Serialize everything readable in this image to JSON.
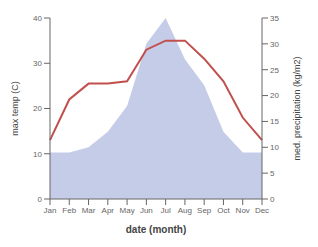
{
  "chart_data": {
    "type": "line",
    "xlabel": "date (month)",
    "ylabel": "max temp (C)",
    "y2label": "med. precipitation (kg/m2)",
    "categories": [
      "Jan",
      "Feb",
      "Mar",
      "Apr",
      "May",
      "Jun",
      "Jul",
      "Aug",
      "Sep",
      "Oct",
      "Nov",
      "Dec"
    ],
    "series": [
      {
        "type": "area",
        "axis": "y2",
        "color": "#c5cce8",
        "values": [
          9,
          9,
          10,
          13,
          18,
          30,
          35,
          27,
          22,
          13,
          9,
          9
        ]
      },
      {
        "type": "line",
        "axis": "y",
        "color": "#c0504d",
        "values": [
          13,
          22,
          25.5,
          25.5,
          26,
          33,
          35,
          35,
          31,
          26,
          18,
          13
        ]
      }
    ],
    "ylim": [
      0,
      40
    ],
    "yticks": [
      0,
      10,
      20,
      30,
      40
    ],
    "y2lim": [
      0,
      35
    ],
    "y2ticks": [
      0,
      5,
      10,
      15,
      20,
      25,
      30,
      35
    ],
    "grid": false
  }
}
